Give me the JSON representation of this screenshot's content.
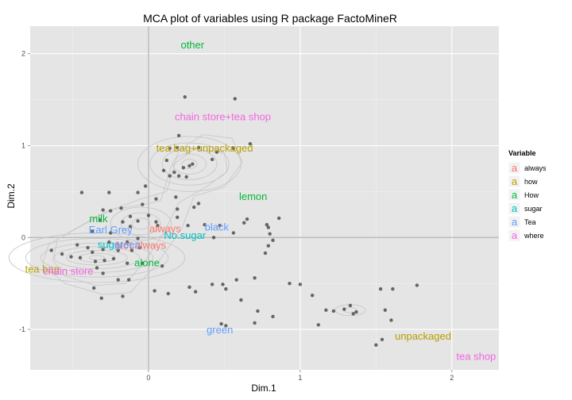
{
  "chart_data": {
    "type": "scatter",
    "title": "MCA plot of variables using R package FactoMineR",
    "xlabel": "Dim.1",
    "ylabel": "Dim.2",
    "xlim": [
      -0.78,
      2.31
    ],
    "ylim": [
      -1.44,
      2.3
    ],
    "x_ticks": [
      0,
      1,
      2
    ],
    "y_ticks": [
      -1,
      0,
      1,
      2
    ],
    "grid": true,
    "background": "#e5e5e5",
    "legend": {
      "title": "Variable",
      "placement": "right",
      "entries": [
        {
          "name": "always",
          "color": "#f8766d"
        },
        {
          "name": "how",
          "color": "#b79f00"
        },
        {
          "name": "How",
          "color": "#00ba38"
        },
        {
          "name": "sugar",
          "color": "#00bfc4"
        },
        {
          "name": "Tea",
          "color": "#619cff"
        },
        {
          "name": "where",
          "color": "#f564e3"
        }
      ]
    },
    "labels": [
      {
        "text": "other",
        "x": 0.29,
        "y": 2.1,
        "variable": "How"
      },
      {
        "text": "chain store+tea shop",
        "x": 0.49,
        "y": 1.32,
        "variable": "where"
      },
      {
        "text": "tea bag+unpackaged",
        "x": 0.37,
        "y": 0.98,
        "variable": "how"
      },
      {
        "text": "lemon",
        "x": 0.69,
        "y": 0.45,
        "variable": "How"
      },
      {
        "text": "milk",
        "x": -0.33,
        "y": 0.21,
        "variable": "How"
      },
      {
        "text": "Earl Grey",
        "x": -0.25,
        "y": 0.09,
        "variable": "Tea"
      },
      {
        "text": "always",
        "x": 0.11,
        "y": 0.1,
        "variable": "always"
      },
      {
        "text": "black",
        "x": 0.45,
        "y": 0.12,
        "variable": "Tea"
      },
      {
        "text": "No.sugar",
        "x": 0.24,
        "y": 0.03,
        "variable": "sugar"
      },
      {
        "text": "sugar",
        "x": -0.25,
        "y": -0.07,
        "variable": "sugar"
      },
      {
        "text": "Not.always",
        "x": -0.05,
        "y": -0.08,
        "variable": "always"
      },
      {
        "text": "green",
        "x": -0.14,
        "y": -0.07,
        "variable": "Tea"
      },
      {
        "text": "alone",
        "x": -0.01,
        "y": -0.27,
        "variable": "How"
      },
      {
        "text": "tea bag",
        "x": -0.7,
        "y": -0.34,
        "variable": "how"
      },
      {
        "text": "chain store",
        "x": -0.53,
        "y": -0.36,
        "variable": "where"
      },
      {
        "text": "green",
        "x": 0.47,
        "y": -1.0,
        "variable": "Tea"
      },
      {
        "text": "unpackaged",
        "x": 1.81,
        "y": -1.07,
        "variable": "how"
      },
      {
        "text": "tea shop",
        "x": 2.16,
        "y": -1.29,
        "variable": "where"
      }
    ],
    "points": [
      [
        0.24,
        1.53
      ],
      [
        0.57,
        1.51
      ],
      [
        0.2,
        1.11
      ],
      [
        0.67,
        1.02
      ],
      [
        0.19,
        0.98
      ],
      [
        0.33,
        0.98
      ],
      [
        0.56,
        0.97
      ],
      [
        0.14,
        0.97
      ],
      [
        0.45,
        0.93
      ],
      [
        0.42,
        0.85
      ],
      [
        0.12,
        0.84
      ],
      [
        0.29,
        0.8
      ],
      [
        0.27,
        0.78
      ],
      [
        0.17,
        0.71
      ],
      [
        0.1,
        0.73
      ],
      [
        0.14,
        0.67
      ],
      [
        0.2,
        0.67
      ],
      [
        0.23,
        0.76
      ],
      [
        0.25,
        0.66
      ],
      [
        -0.02,
        0.56
      ],
      [
        -0.26,
        0.49
      ],
      [
        -0.07,
        0.49
      ],
      [
        -0.44,
        0.49
      ],
      [
        0.18,
        0.44
      ],
      [
        0.05,
        0.42
      ],
      [
        0.19,
        0.31
      ],
      [
        0.33,
        0.37
      ],
      [
        0.3,
        0.33
      ],
      [
        -0.04,
        0.36
      ],
      [
        -0.18,
        0.32
      ],
      [
        -0.25,
        0.29
      ],
      [
        -0.3,
        0.3
      ],
      [
        -0.12,
        0.23
      ],
      [
        0.0,
        0.24
      ],
      [
        0.19,
        0.22
      ],
      [
        0.65,
        0.2
      ],
      [
        0.86,
        0.21
      ],
      [
        0.63,
        0.16
      ],
      [
        0.78,
        0.14
      ],
      [
        0.05,
        0.17
      ],
      [
        -0.07,
        0.18
      ],
      [
        -0.17,
        0.17
      ],
      [
        -0.32,
        0.19
      ],
      [
        -0.12,
        0.12
      ],
      [
        0.06,
        0.13
      ],
      [
        0.26,
        0.13
      ],
      [
        0.37,
        0.14
      ],
      [
        0.47,
        0.13
      ],
      [
        0.56,
        0.05
      ],
      [
        0.79,
        0.11
      ],
      [
        0.8,
        0.04
      ],
      [
        -0.25,
        0.05
      ],
      [
        -0.37,
        0.07
      ],
      [
        0.43,
        0.0
      ],
      [
        0.82,
        -0.03
      ],
      [
        0.79,
        -0.09
      ],
      [
        0.77,
        -0.17
      ],
      [
        -0.47,
        -0.08
      ],
      [
        -0.26,
        -0.05
      ],
      [
        -0.14,
        -0.05
      ],
      [
        -0.07,
        -0.01
      ],
      [
        -0.4,
        -0.11
      ],
      [
        -0.37,
        -0.16
      ],
      [
        -0.3,
        -0.13
      ],
      [
        -0.2,
        -0.14
      ],
      [
        -0.11,
        -0.14
      ],
      [
        -0.06,
        -0.11
      ],
      [
        -0.64,
        -0.14
      ],
      [
        -0.57,
        -0.18
      ],
      [
        -0.51,
        -0.21
      ],
      [
        -0.45,
        -0.22
      ],
      [
        -0.35,
        -0.26
      ],
      [
        -0.29,
        -0.25
      ],
      [
        -0.23,
        -0.23
      ],
      [
        -0.14,
        -0.28
      ],
      [
        -0.04,
        -0.28
      ],
      [
        0.09,
        -0.31
      ],
      [
        -0.34,
        -0.33
      ],
      [
        -0.3,
        -0.39
      ],
      [
        -0.2,
        -0.46
      ],
      [
        -0.13,
        -0.46
      ],
      [
        0.04,
        -0.58
      ],
      [
        0.13,
        -0.61
      ],
      [
        -0.36,
        -0.55
      ],
      [
        -0.31,
        -0.66
      ],
      [
        -0.17,
        -0.64
      ],
      [
        0.27,
        -0.54
      ],
      [
        0.31,
        -0.59
      ],
      [
        0.42,
        -0.51
      ],
      [
        0.49,
        -0.51
      ],
      [
        0.58,
        -0.46
      ],
      [
        0.7,
        -0.44
      ],
      [
        0.51,
        -0.56
      ],
      [
        0.61,
        -0.68
      ],
      [
        0.72,
        -0.8
      ],
      [
        0.82,
        -0.86
      ],
      [
        0.48,
        -0.94
      ],
      [
        0.93,
        -0.5
      ],
      [
        1.0,
        -0.51
      ],
      [
        1.08,
        -0.63
      ],
      [
        0.51,
        -0.96
      ],
      [
        0.7,
        -0.93
      ],
      [
        1.17,
        -0.79
      ],
      [
        1.33,
        -0.74
      ],
      [
        1.29,
        -0.78
      ],
      [
        1.35,
        -0.83
      ],
      [
        1.22,
        -0.8
      ],
      [
        1.37,
        -0.81
      ],
      [
        1.61,
        -0.56
      ],
      [
        1.77,
        -0.52
      ],
      [
        1.53,
        -0.56
      ],
      [
        1.56,
        -0.79
      ],
      [
        1.6,
        -0.9
      ],
      [
        1.5,
        -1.17
      ],
      [
        1.54,
        -1.11
      ],
      [
        1.12,
        -0.95
      ]
    ]
  }
}
